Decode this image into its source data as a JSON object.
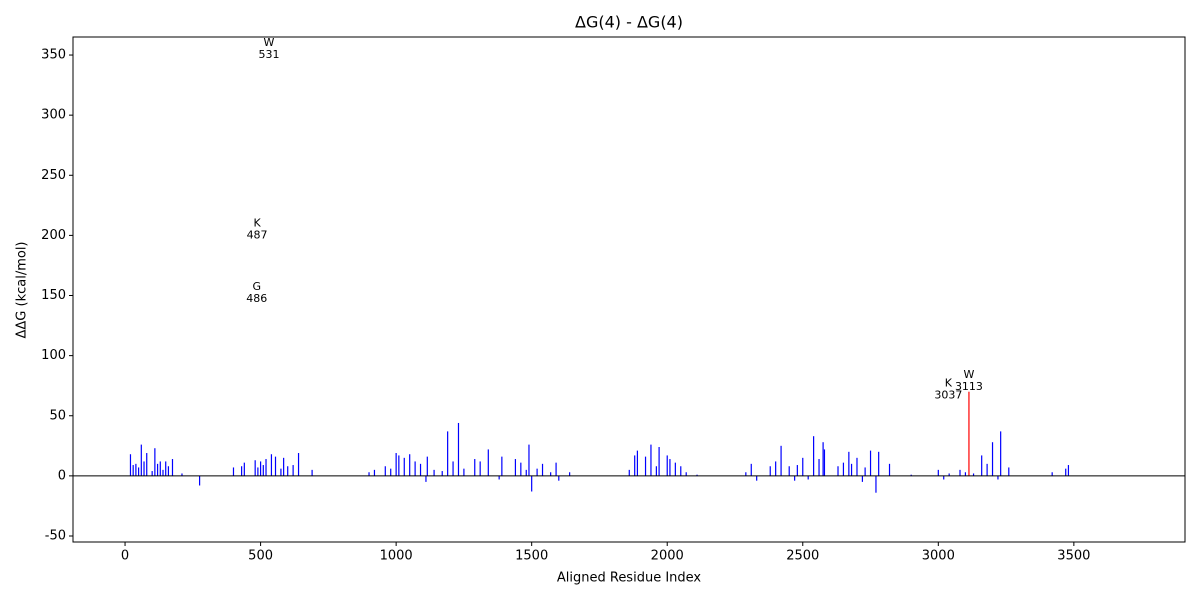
{
  "chart_data": {
    "type": "bar",
    "title": "ΔG(4) - ΔG(4)",
    "x_label": "Aligned Residue Index",
    "y_label": "ΔΔG (kcal/mol)",
    "xlim": [
      -192,
      3910
    ],
    "ylim": [
      -55,
      365
    ],
    "xticks": [
      0,
      500,
      1000,
      1500,
      2000,
      2500,
      3000,
      3500
    ],
    "yticks": [
      -50,
      0,
      50,
      100,
      150,
      200,
      250,
      300,
      350
    ],
    "zero_line": true,
    "series": [
      {
        "color": "#0000ff",
        "x": [
          20,
          30,
          40,
          50,
          60,
          70,
          80,
          100,
          110,
          120,
          130,
          140,
          150,
          160,
          175,
          210,
          275,
          400,
          430,
          440,
          480,
          490,
          500,
          510,
          520,
          540,
          555,
          575,
          585,
          600,
          620,
          640,
          690,
          900,
          920,
          960,
          980,
          1000,
          1010,
          1030,
          1050,
          1070,
          1090,
          1110,
          1115,
          1140,
          1170,
          1190,
          1210,
          1230,
          1250,
          1290,
          1310,
          1340,
          1380,
          1390,
          1440,
          1460,
          1480,
          1490,
          1500,
          1520,
          1540,
          1570,
          1590,
          1600,
          1640,
          1860,
          1880,
          1890,
          1920,
          1940,
          1960,
          1970,
          2000,
          2010,
          2030,
          2050,
          2070,
          2110,
          2290,
          2310,
          2330,
          2380,
          2400,
          2420,
          2450,
          2470,
          2480,
          2500,
          2520,
          2540,
          2560,
          2575,
          2580,
          2630,
          2650,
          2670,
          2680,
          2700,
          2720,
          2730,
          2750,
          2770,
          2780,
          2820,
          2900,
          3000,
          3020,
          3040,
          3080,
          3100,
          3130,
          3160,
          3180,
          3200,
          3220,
          3230,
          3260,
          3420,
          3470,
          3480
        ],
        "values": [
          18,
          9,
          10,
          7,
          26,
          12,
          19,
          4,
          23,
          10,
          12,
          5,
          12,
          8,
          14,
          2,
          -8,
          7,
          8,
          11,
          13,
          7,
          12,
          9,
          14,
          18,
          16,
          6,
          15,
          8,
          9,
          19,
          5,
          3,
          5,
          8,
          6,
          19,
          17,
          15,
          18,
          12,
          10,
          -5,
          16,
          5,
          4,
          37,
          12,
          44,
          6,
          14,
          12,
          22,
          -3,
          16,
          14,
          11,
          5,
          26,
          -13,
          6,
          10,
          3,
          11,
          -4,
          3,
          5,
          17,
          21,
          16,
          26,
          8,
          24,
          17,
          14,
          11,
          8,
          3,
          1,
          3,
          10,
          -4,
          8,
          12,
          25,
          8,
          -4,
          9,
          15,
          -3,
          33,
          14,
          28,
          22,
          8,
          11,
          20,
          10,
          15,
          -5,
          7,
          21,
          -14,
          20,
          10,
          1,
          5,
          -3,
          2,
          5,
          3,
          2,
          17,
          10,
          28,
          -3,
          37,
          7,
          3,
          6,
          9
        ]
      },
      {
        "color": "#ff0000",
        "x": [
          3113
        ],
        "values": [
          70
        ]
      }
    ],
    "annotations": [
      {
        "residue": "W",
        "index": 531,
        "y": 355
      },
      {
        "residue": "K",
        "index": 487,
        "y": 205
      },
      {
        "residue": "G",
        "index": 486,
        "y": 152
      },
      {
        "residue": "K",
        "index": 3037,
        "y": 72
      },
      {
        "residue": "W",
        "index": 3113,
        "y": 79
      }
    ]
  }
}
